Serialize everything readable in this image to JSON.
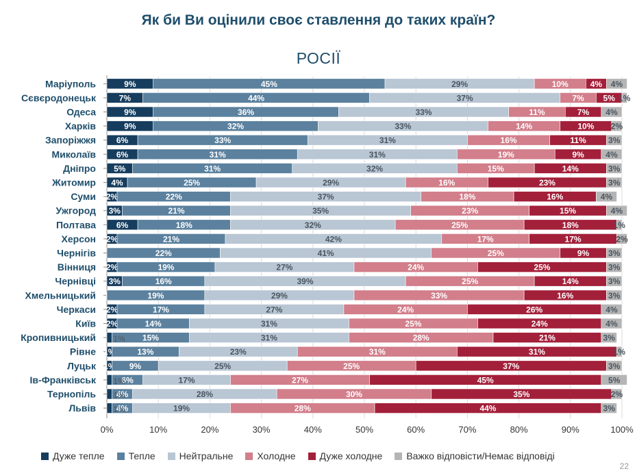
{
  "page_title": "Як би Ви оцінили своє ставлення до таких країн?",
  "page_number": "22",
  "colors": {
    "very_warm": "#163d5e",
    "warm": "#5b819e",
    "neutral": "#b9c6d4",
    "cold": "#d27e8b",
    "very_cold": "#a3203a",
    "dk": "#b5b5b5",
    "text_dark": "#1f4e6b"
  },
  "chart_data": {
    "type": "bar",
    "orientation": "horizontal",
    "stacked": true,
    "title": "РОСІЇ",
    "categories": [
      "Маріуполь",
      "Сєвєродонецьк",
      "Одеса",
      "Харків",
      "Запоріжжя",
      "Миколаїв",
      "Дніпро",
      "Житомир",
      "Суми",
      "Ужгород",
      "Полтава",
      "Херсон",
      "Чернігів",
      "Вінниця",
      "Чернівці",
      "Хмельницький",
      "Черкаси",
      "Київ",
      "Кропивницький",
      "Рівне",
      "Луцьк",
      "Ів-Франківськ",
      "Тернопіль",
      "Львів"
    ],
    "series": [
      {
        "name": "Дуже тепле",
        "color_key": "very_warm",
        "values": [
          9,
          7,
          9,
          9,
          6,
          6,
          5,
          4,
          2,
          3,
          6,
          2,
          0,
          2,
          3,
          0,
          2,
          2,
          1,
          1,
          1,
          1,
          1,
          1
        ],
        "labels": [
          "9%",
          "7%",
          "9%",
          "9%",
          "6%",
          "6%",
          "5%",
          "4%",
          "2%",
          "3%",
          "6%",
          "2%",
          "",
          "2%",
          "3%",
          "%",
          "2%",
          "2%",
          "",
          "1%",
          "1%",
          "",
          "",
          ""
        ]
      },
      {
        "name": "Тепле",
        "color_key": "warm",
        "values": [
          45,
          44,
          36,
          32,
          33,
          31,
          31,
          25,
          22,
          21,
          18,
          21,
          22,
          19,
          16,
          19,
          17,
          14,
          15,
          13,
          9,
          6,
          4,
          4
        ],
        "labels": [
          "45%",
          "44%",
          "36%",
          "32%",
          "33%",
          "31%",
          "31%",
          "25%",
          "22%",
          "21%",
          "18%",
          "21%",
          "22%",
          "19%",
          "16%",
          "19%",
          "17%",
          "14%",
          "15%",
          "13%",
          "9%",
          "6%",
          "4%",
          "4%"
        ]
      },
      {
        "name": "Нейтральне",
        "color_key": "neutral",
        "values": [
          29,
          37,
          33,
          33,
          31,
          31,
          32,
          29,
          37,
          35,
          32,
          42,
          41,
          27,
          39,
          29,
          27,
          31,
          31,
          23,
          25,
          17,
          28,
          19
        ],
        "labels": [
          "29%",
          "37%",
          "33%",
          "33%",
          "31%",
          "31%",
          "32%",
          "29%",
          "37%",
          "35%",
          "32%",
          "42%",
          "41%",
          "27%",
          "39%",
          "29%",
          "27%",
          "31%",
          "31%",
          "23%",
          "25%",
          "17%",
          "28%",
          "19%"
        ]
      },
      {
        "name": "Холодне",
        "color_key": "cold",
        "values": [
          10,
          7,
          11,
          14,
          16,
          19,
          15,
          16,
          18,
          23,
          25,
          17,
          25,
          24,
          25,
          33,
          24,
          25,
          28,
          31,
          25,
          27,
          30,
          28
        ],
        "labels": [
          "10%",
          "7%",
          "11%",
          "14%",
          "16%",
          "19%",
          "15%",
          "16%",
          "18%",
          "23%",
          "25%",
          "17%",
          "25%",
          "24%",
          "25%",
          "33%",
          "24%",
          "25%",
          "28%",
          "31%",
          "25%",
          "27%",
          "30%",
          "28%"
        ]
      },
      {
        "name": "Дуже холодне",
        "color_key": "very_cold",
        "values": [
          4,
          5,
          7,
          10,
          11,
          9,
          14,
          23,
          16,
          15,
          18,
          17,
          9,
          25,
          14,
          16,
          26,
          24,
          21,
          31,
          37,
          45,
          35,
          44
        ],
        "labels": [
          "4%",
          "5%",
          "7%",
          "10%",
          "11%",
          "9%",
          "14%",
          "23%",
          "16%",
          "15%",
          "18%",
          "17%",
          "9%",
          "25%",
          "14%",
          "16%",
          "26%",
          "24%",
          "21%",
          "31%",
          "37%",
          "45%",
          "35%",
          "44%"
        ]
      },
      {
        "name": "Важко відповісти/Немає відповіді",
        "color_key": "dk",
        "values": [
          4,
          1,
          4,
          2,
          3,
          4,
          3,
          3,
          4,
          4,
          1,
          2,
          3,
          3,
          3,
          3,
          4,
          4,
          3,
          1,
          3,
          5,
          2,
          3
        ],
        "labels": [
          "4%",
          "1%",
          "4%",
          "2%",
          "3%",
          "4%",
          "3%",
          "3%",
          "4%",
          "4%",
          "1%",
          "2%",
          "3%",
          "3%",
          "3%",
          "3%",
          "4%",
          "4%",
          "3%",
          "1%",
          "3%",
          "5%",
          "2%",
          "3%"
        ]
      }
    ],
    "extra_labels": [
      {
        "row": 18,
        "text": "1%"
      },
      {
        "row": 21,
        "text": "1%"
      },
      {
        "row": 22,
        "text": "1%"
      },
      {
        "row": 23,
        "text": "1%"
      }
    ],
    "xlim": [
      0,
      100
    ],
    "xticks": [
      "0%",
      "10%",
      "20%",
      "30%",
      "40%",
      "50%",
      "60%",
      "70%",
      "80%",
      "90%",
      "100%"
    ],
    "grid": true,
    "legend_position": "bottom"
  }
}
